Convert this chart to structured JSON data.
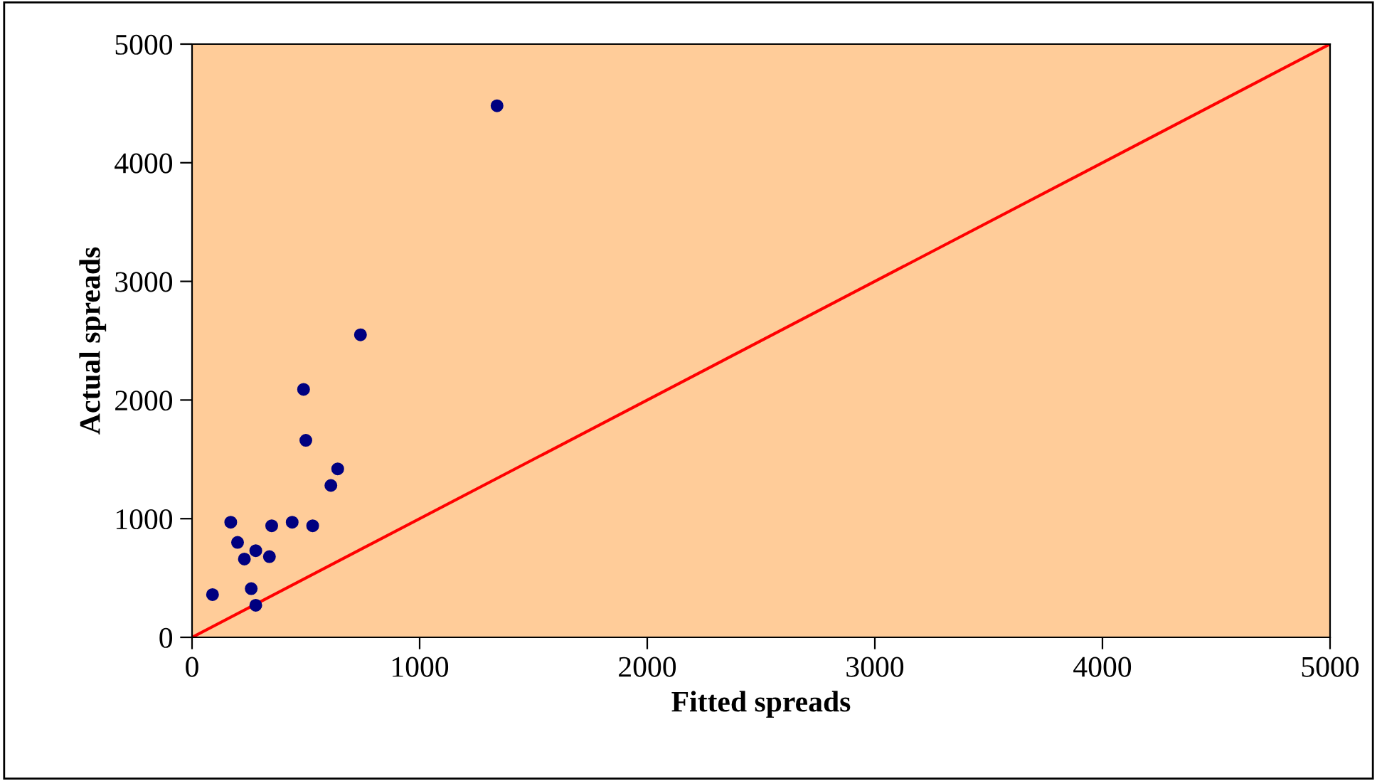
{
  "chart_data": {
    "type": "scatter",
    "xlabel": "Fitted spreads",
    "ylabel": "Actual spreads",
    "xlim": [
      0,
      5000
    ],
    "ylim": [
      0,
      5000
    ],
    "xticks": [
      0,
      1000,
      2000,
      3000,
      4000,
      5000
    ],
    "yticks": [
      0,
      1000,
      2000,
      3000,
      4000,
      5000
    ],
    "grid": false,
    "legend": false,
    "series": [
      {
        "color": "#000080",
        "marker": "circle",
        "x": [
          90,
          170,
          200,
          230,
          260,
          280,
          280,
          340,
          350,
          440,
          530,
          490,
          500,
          610,
          640,
          740,
          1340
        ],
        "values": [
          360,
          970,
          800,
          660,
          410,
          270,
          730,
          680,
          940,
          970,
          940,
          2090,
          1660,
          1280,
          1420,
          2550,
          4480
        ]
      },
      {
        "type": "line",
        "color": "#ff0000",
        "line_style": "solid",
        "marker": "none",
        "x": [
          0,
          5000
        ],
        "values": [
          0,
          5000
        ]
      }
    ]
  }
}
